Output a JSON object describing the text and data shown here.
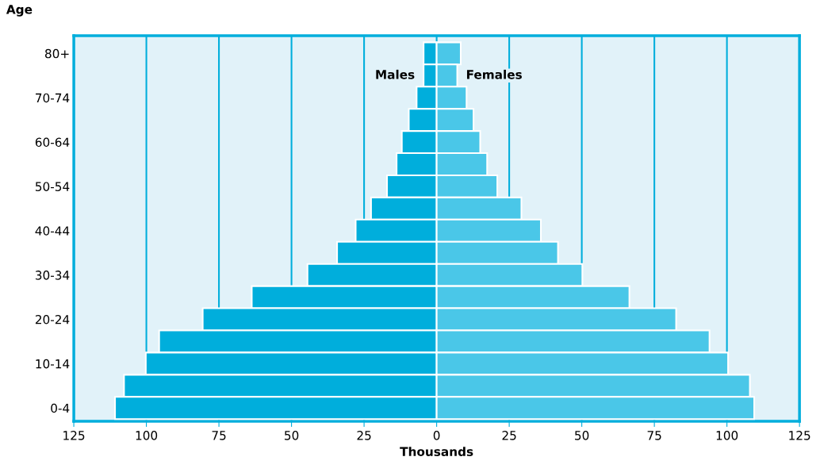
{
  "chart_data": {
    "type": "bar",
    "orientation": "horizontal",
    "stacked": true,
    "xlabel": "Thousands",
    "ylabel": "Age",
    "categories": [
      "80+",
      null,
      "70-74",
      null,
      "60-64",
      null,
      "50-54",
      null,
      "40-44",
      null,
      "30-34",
      null,
      "20-24",
      null,
      "10-14",
      null,
      "0-4"
    ],
    "series": [
      {
        "name": "Males",
        "color": "#00aedc",
        "values": [
          -4.5,
          -4.5,
          -6.9,
          -9.6,
          -12,
          -13.8,
          -17.1,
          -22.6,
          -27.9,
          -34.3,
          -44.5,
          -63.7,
          -80.6,
          -95.6,
          -100.2,
          -107.7,
          -110.8
        ]
      },
      {
        "name": "Females",
        "color": "#4ac7e8",
        "values": [
          8.3,
          7.1,
          10.3,
          12.7,
          15,
          17.4,
          20.9,
          29.2,
          35.9,
          41.8,
          50.2,
          66.4,
          82.5,
          94,
          100.4,
          107.9,
          109.4
        ]
      }
    ],
    "xlim": [
      -125,
      125
    ],
    "xticks": [
      {
        "value": -125,
        "label": "125"
      },
      {
        "value": -100,
        "label": "100"
      },
      {
        "value": -75,
        "label": "75"
      },
      {
        "value": -50,
        "label": "50"
      },
      {
        "value": -25,
        "label": "25"
      },
      0,
      25,
      50,
      75,
      100,
      125
    ],
    "grid": "x"
  }
}
